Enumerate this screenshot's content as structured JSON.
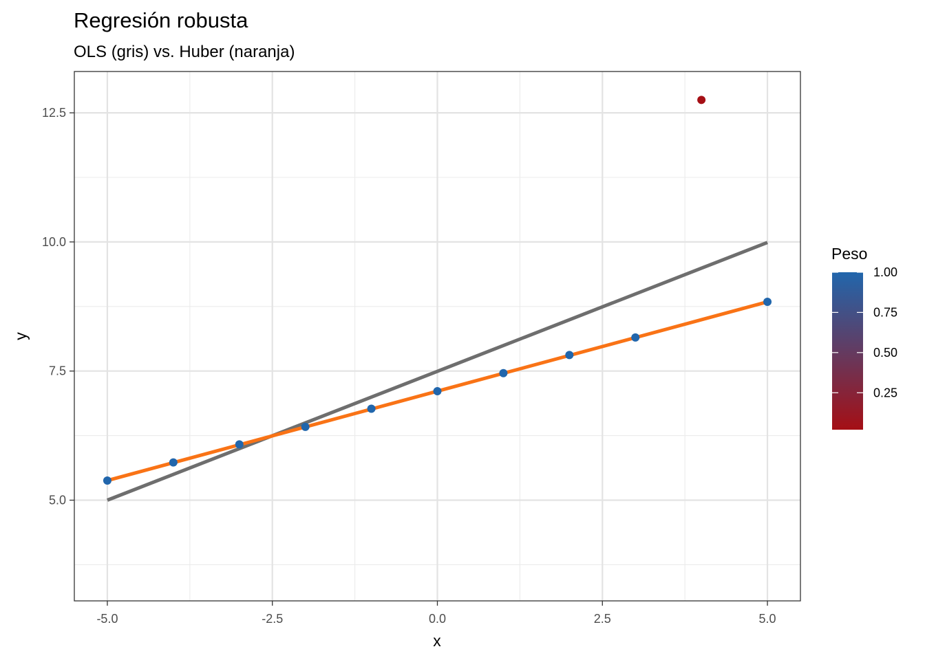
{
  "chart_data": {
    "type": "scatter",
    "title": "Regresión robusta",
    "subtitle": "OLS (gris) vs. Huber (naranja)",
    "xlabel": "x",
    "ylabel": "y",
    "xlim": [
      -5.5,
      5.5
    ],
    "ylim": [
      3.05,
      13.3
    ],
    "x_ticks": [
      -5.0,
      -2.5,
      0.0,
      2.5,
      5.0
    ],
    "x_tick_labels": [
      "-5.0",
      "-2.5",
      "0.0",
      "2.5",
      "5.0"
    ],
    "y_ticks": [
      5.0,
      7.5,
      10.0,
      12.5
    ],
    "y_tick_labels": [
      "5.0",
      "7.5",
      "10.0",
      "12.5"
    ],
    "grid": true,
    "points": [
      {
        "x": -5,
        "y": 5.38,
        "weight": 1.0
      },
      {
        "x": -4,
        "y": 5.73,
        "weight": 1.0
      },
      {
        "x": -3,
        "y": 6.08,
        "weight": 1.0
      },
      {
        "x": -2,
        "y": 6.42,
        "weight": 1.0
      },
      {
        "x": -1,
        "y": 6.77,
        "weight": 1.0
      },
      {
        "x": 0,
        "y": 7.11,
        "weight": 1.0
      },
      {
        "x": 1,
        "y": 7.46,
        "weight": 1.0
      },
      {
        "x": 2,
        "y": 7.81,
        "weight": 1.0
      },
      {
        "x": 3,
        "y": 8.15,
        "weight": 1.0
      },
      {
        "x": 4,
        "y": 12.75,
        "weight": 0.02
      },
      {
        "x": 5,
        "y": 8.84,
        "weight": 1.0
      }
    ],
    "lines": [
      {
        "x": [
          -5,
          5
        ],
        "y": [
          5.0,
          9.99
        ],
        "color": "#6e6e6e"
      },
      {
        "x": [
          -5,
          5
        ],
        "y": [
          5.38,
          8.84
        ],
        "color": "#f97316"
      }
    ],
    "legend": {
      "title": "Peso",
      "placement": "right",
      "range": [
        0.02,
        1.0
      ],
      "breaks": [
        1.0,
        0.75,
        0.5,
        0.25
      ],
      "break_labels": [
        "1.00",
        "0.75",
        "0.50",
        "0.25"
      ],
      "low_color": "#a50f15",
      "high_color": "#2166ac"
    }
  }
}
